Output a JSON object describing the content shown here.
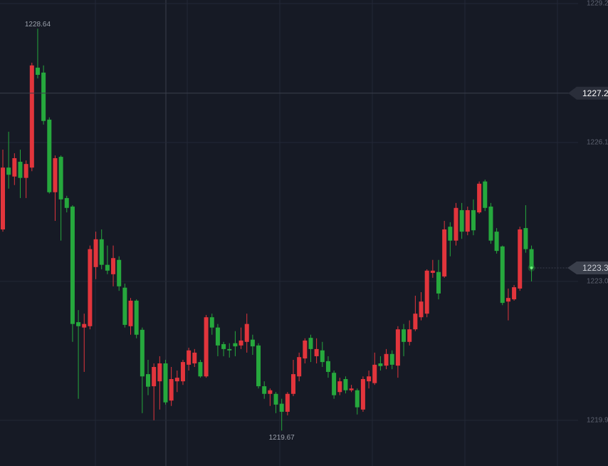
{
  "chart_data": {
    "type": "candlestick",
    "open": [
      1224.16,
      1225.54,
      1225.34,
      1225.67,
      1225.31,
      1225.54,
      1227.77,
      1227.66,
      1226.61,
      1224.99,
      1225.78,
      1224.86,
      1224.67,
      1222.09,
      1221.97,
      1222.0,
      1223.32,
      1223.94,
      1223.37,
      1223.16,
      1223.48,
      1222.86,
      1222.0,
      1222.57,
      1221.92,
      1220.93,
      1220.66,
      1220.77,
      1221.17,
      1220.34,
      1220.77,
      1220.77,
      1221.14,
      1221.17,
      1221.2,
      1220.88,
      1222.2,
      1221.97,
      1221.6,
      1221.49,
      1221.62,
      1221.57,
      1221.65,
      1221.7,
      1221.57,
      1220.66,
      1220.49,
      1220.49,
      1220.27,
      1220.09,
      1220.49,
      1220.88,
      1221.28,
      1221.74,
      1221.33,
      1221.46,
      1221.22,
      1220.96,
      1220.53,
      1220.82,
      1220.57,
      1220.57,
      1220.14,
      1220.77,
      1220.73,
      1221.17,
      1221.12,
      1221.38,
      1221.12,
      1221.93,
      1221.65,
      1221.93,
      1222.2,
      1222.28,
      1223.19,
      1223.21,
      1223.11,
      1224.22,
      1223.91,
      1224.59,
      1224.11,
      1224.59,
      1224.54,
      1225.23,
      1224.67,
      1224.11,
      1223.78,
      1222.55,
      1222.6,
      1222.84,
      1224.19,
      1223.72
    ],
    "high": [
      1225.94,
      1226.34,
      1225.86,
      1225.94,
      1225.7,
      1227.88,
      1228.64,
      1227.82,
      1226.66,
      1225.81,
      1225.81,
      1224.91,
      1224.7,
      1222.36,
      1222.28,
      1223.8,
      1224.11,
      1224.16,
      1223.8,
      1223.8,
      1223.56,
      1222.95,
      1222.63,
      1222.6,
      1221.97,
      1221.25,
      1221.17,
      1221.33,
      1221.25,
      1221.09,
      1221.01,
      1221.25,
      1221.52,
      1221.49,
      1221.25,
      1222.25,
      1222.28,
      1222.05,
      1221.65,
      1221.62,
      1221.89,
      1221.97,
      1222.28,
      1221.81,
      1221.62,
      1220.77,
      1220.61,
      1220.53,
      1220.38,
      1220.53,
      1221.25,
      1221.41,
      1221.73,
      1221.81,
      1221.73,
      1221.65,
      1221.33,
      1221.01,
      1220.85,
      1220.88,
      1220.69,
      1220.61,
      1220.88,
      1221.01,
      1221.41,
      1221.33,
      1221.49,
      1221.46,
      1222.0,
      1222.05,
      1222.13,
      1222.68,
      1222.76,
      1223.27,
      1223.48,
      1223.48,
      1224.35,
      1224.32,
      1224.75,
      1224.75,
      1224.67,
      1224.83,
      1225.23,
      1225.27,
      1224.75,
      1224.19,
      1223.8,
      1222.84,
      1222.92,
      1224.22,
      1224.7,
      1223.8
    ],
    "low": [
      1224.11,
      1225.07,
      1225.15,
      1224.86,
      1224.86,
      1225.46,
      1227.53,
      1226.5,
      1224.96,
      1224.35,
      1223.91,
      1224.54,
      1221.65,
      1220.38,
      1220.98,
      1221.93,
      1223.05,
      1223.27,
      1223.16,
      1222.89,
      1222.79,
      1221.97,
      1221.81,
      1221.73,
      1220.06,
      1220.46,
      1219.9,
      1220.14,
      1220.25,
      1220.22,
      1220.53,
      1220.69,
      1221.01,
      1221.09,
      1220.85,
      1220.85,
      1221.81,
      1221.33,
      1221.33,
      1221.3,
      1221.33,
      1221.49,
      1221.41,
      1221.36,
      1220.61,
      1220.38,
      1220.22,
      1220.06,
      1219.67,
      1220.01,
      1220.44,
      1220.77,
      1221.17,
      1221.2,
      1221.17,
      1221.09,
      1220.85,
      1220.38,
      1220.46,
      1220.5,
      1220.53,
      1220.03,
      1220.09,
      1220.61,
      1220.69,
      1221.01,
      1221.04,
      1221.04,
      1220.85,
      1221.33,
      1221.57,
      1221.89,
      1222.13,
      1222.2,
      1223.08,
      1222.6,
      1223.08,
      1223.56,
      1223.8,
      1223.95,
      1224.03,
      1224.03,
      1224.51,
      1224.57,
      1223.84,
      1223.62,
      1222.47,
      1222.13,
      1222.57,
      1222.79,
      1223.64,
      1223.0
    ],
    "close": [
      1225.54,
      1225.38,
      1225.75,
      1225.31,
      1225.62,
      1227.82,
      1227.61,
      1226.58,
      1224.99,
      1225.75,
      1224.83,
      1224.64,
      1222.05,
      1222.0,
      1222.05,
      1223.72,
      1223.94,
      1223.37,
      1223.24,
      1223.52,
      1222.89,
      1222.03,
      1222.57,
      1221.81,
      1220.88,
      1220.65,
      1221.09,
      1221.17,
      1220.3,
      1220.82,
      1220.85,
      1221.2,
      1221.46,
      1221.41,
      1220.88,
      1222.2,
      1221.97,
      1221.57,
      1221.49,
      1221.46,
      1221.55,
      1221.68,
      1222.05,
      1221.55,
      1220.66,
      1220.49,
      1220.57,
      1220.25,
      1220.09,
      1220.49,
      1220.93,
      1221.31,
      1221.68,
      1221.49,
      1221.49,
      1221.2,
      1220.98,
      1220.46,
      1220.77,
      1220.57,
      1220.61,
      1220.19,
      1220.82,
      1220.88,
      1221.14,
      1221.11,
      1221.38,
      1221.14,
      1221.93,
      1221.65,
      1221.93,
      1222.28,
      1222.55,
      1223.24,
      1223.24,
      1222.73,
      1224.16,
      1223.91,
      1224.64,
      1224.11,
      1224.59,
      1224.14,
      1225.18,
      1224.64,
      1223.91,
      1223.68,
      1222.52,
      1222.63,
      1222.87,
      1224.16,
      1223.72,
      1223.3
    ],
    "up_color": "#e2353c",
    "down_color": "#26a83d",
    "ylim": [
      1218.88,
      1229.28
    ],
    "yticks": [
      1229.2,
      1226.1,
      {
        "value": 1223,
        "label": "1223.0"
      },
      1219.9
    ],
    "crosshair_price": 1227.2,
    "grid": true
  }
}
